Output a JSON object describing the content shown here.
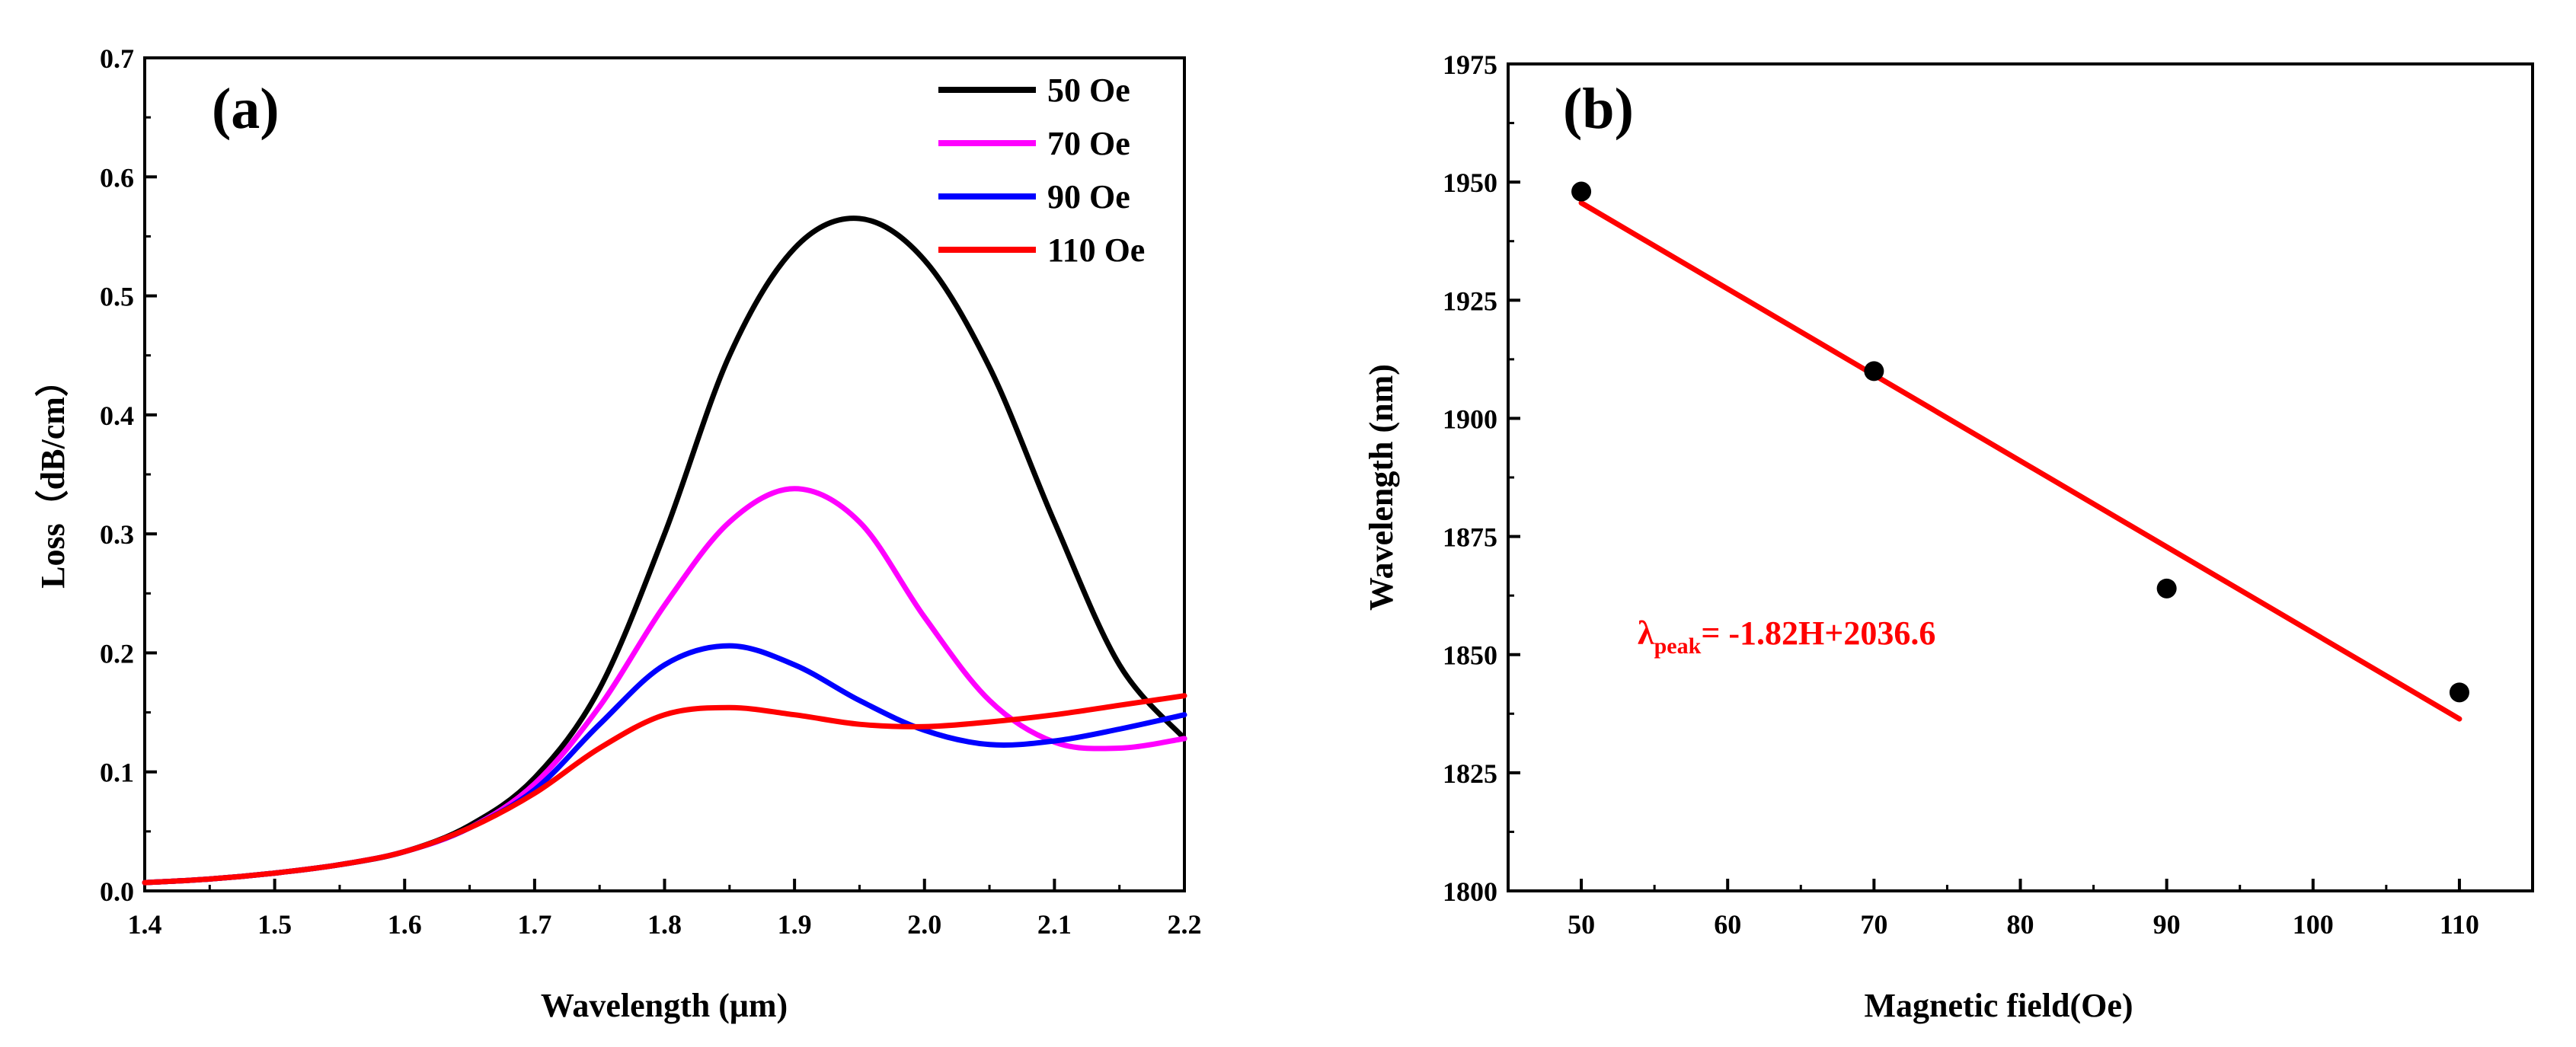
{
  "chart_data": [
    {
      "type": "line",
      "panel_label": "(a)",
      "xlabel": "Wavelength (μm)",
      "ylabel": "Loss（dB/cm）",
      "xlim": [
        1.4,
        2.2
      ],
      "ylim": [
        0.0,
        0.7
      ],
      "xticks": [
        "1.4",
        "1.5",
        "1.6",
        "1.7",
        "1.8",
        "1.9",
        "2.0",
        "2.1",
        "2.2"
      ],
      "yticks": [
        "0.0",
        "0.1",
        "0.2",
        "0.3",
        "0.4",
        "0.5",
        "0.6",
        "0.7"
      ],
      "legend_position": "top-right",
      "grid": false,
      "x": [
        1.4,
        1.45,
        1.5,
        1.55,
        1.6,
        1.65,
        1.7,
        1.75,
        1.8,
        1.85,
        1.9,
        1.95,
        2.0,
        2.05,
        2.1,
        2.15,
        2.2
      ],
      "series": [
        {
          "name": "50 Oe",
          "color": "#000000",
          "values": [
            0.007,
            0.01,
            0.015,
            0.022,
            0.033,
            0.055,
            0.095,
            0.17,
            0.3,
            0.45,
            0.54,
            0.565,
            0.53,
            0.44,
            0.31,
            0.19,
            0.128
          ]
        },
        {
          "name": "70 Oe",
          "color": "#ff00ff",
          "values": [
            0.007,
            0.01,
            0.015,
            0.022,
            0.033,
            0.053,
            0.09,
            0.155,
            0.24,
            0.31,
            0.338,
            0.31,
            0.23,
            0.16,
            0.125,
            0.12,
            0.128
          ]
        },
        {
          "name": "90 Oe",
          "color": "#0000ff",
          "values": [
            0.007,
            0.01,
            0.015,
            0.022,
            0.033,
            0.053,
            0.085,
            0.14,
            0.19,
            0.206,
            0.19,
            0.16,
            0.135,
            0.123,
            0.126,
            0.136,
            0.148
          ]
        },
        {
          "name": "110 Oe",
          "color": "#ff0000",
          "values": [
            0.007,
            0.01,
            0.015,
            0.022,
            0.033,
            0.053,
            0.082,
            0.12,
            0.148,
            0.154,
            0.148,
            0.14,
            0.138,
            0.142,
            0.148,
            0.156,
            0.164
          ]
        }
      ]
    },
    {
      "type": "scatter",
      "panel_label": "(b)",
      "xlabel": "Magnetic field(Oe)",
      "ylabel": "Wavelength (nm)",
      "xlim": [
        45,
        115
      ],
      "ylim": [
        1800,
        1975
      ],
      "xticks": [
        "50",
        "60",
        "70",
        "80",
        "90",
        "100",
        "110"
      ],
      "yticks": [
        "1800",
        "1825",
        "1850",
        "1875",
        "1900",
        "1925",
        "1950",
        "1975"
      ],
      "grid": false,
      "points": {
        "x": [
          50,
          70,
          90,
          110
        ],
        "y": [
          1948,
          1910,
          1864,
          1842
        ],
        "color": "#000000"
      },
      "fit": {
        "x": [
          50,
          110
        ],
        "y": [
          1945.6,
          1836.4
        ],
        "color": "#ff0000"
      },
      "annotation": {
        "main": "λ",
        "sub": "peak",
        "rest": "= -1.82H+2036.6",
        "color": "#ff0000"
      }
    }
  ]
}
